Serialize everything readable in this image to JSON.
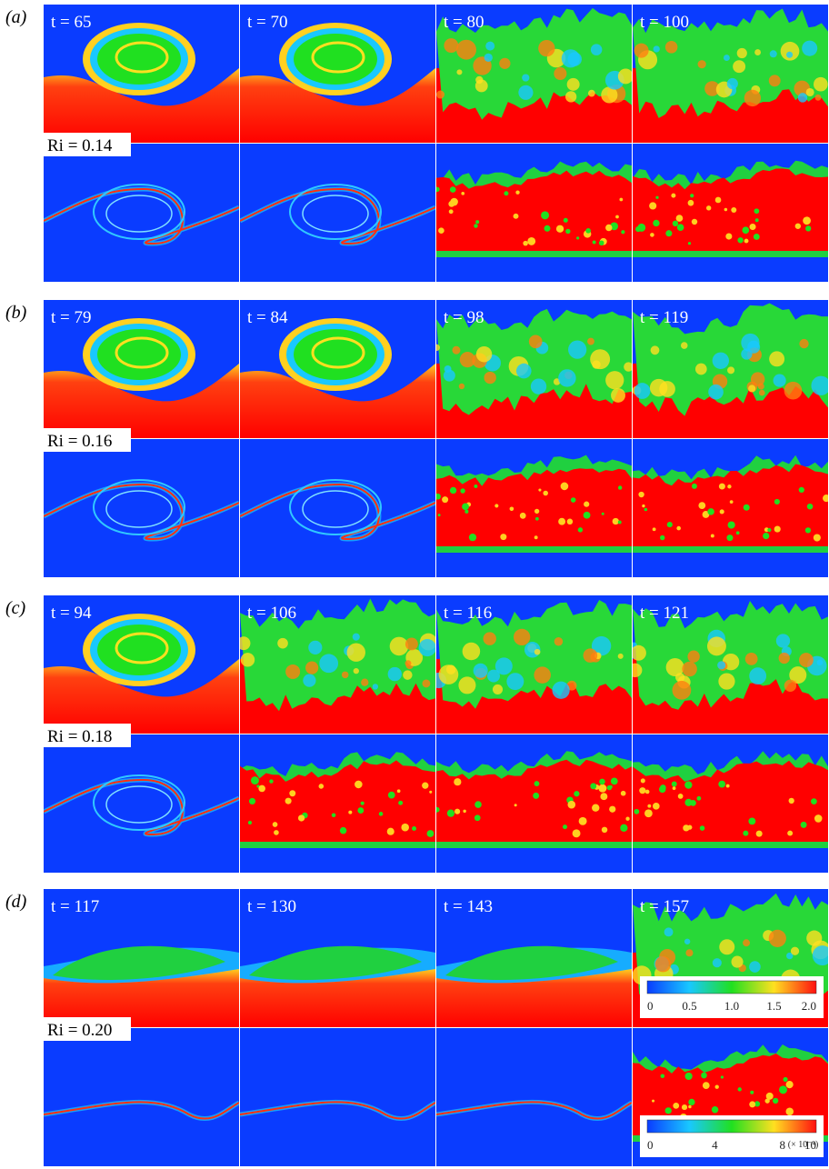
{
  "panels": [
    {
      "label": "(a)",
      "ri": "Ri = 0.14",
      "times": [
        "t = 65",
        "t = 70",
        "t = 80",
        "t = 100"
      ]
    },
    {
      "label": "(b)",
      "ri": "Ri = 0.16",
      "times": [
        "t = 79",
        "t = 84",
        "t = 98",
        "t = 119"
      ]
    },
    {
      "label": "(c)",
      "ri": "Ri = 0.18",
      "times": [
        "t = 94",
        "t = 106",
        "t = 116",
        "t = 121"
      ]
    },
    {
      "label": "(d)",
      "ri": "Ri = 0.20",
      "times": [
        "t = 117",
        "t = 130",
        "t = 143",
        "t = 157"
      ]
    }
  ],
  "colorbars": [
    {
      "ticks": [
        "0",
        "0.5",
        "1.0",
        "1.5",
        "2.0"
      ]
    },
    {
      "ticks": [
        "0",
        "4",
        "8",
        "10"
      ],
      "unit": "(× 10⁻⁴)"
    }
  ]
}
